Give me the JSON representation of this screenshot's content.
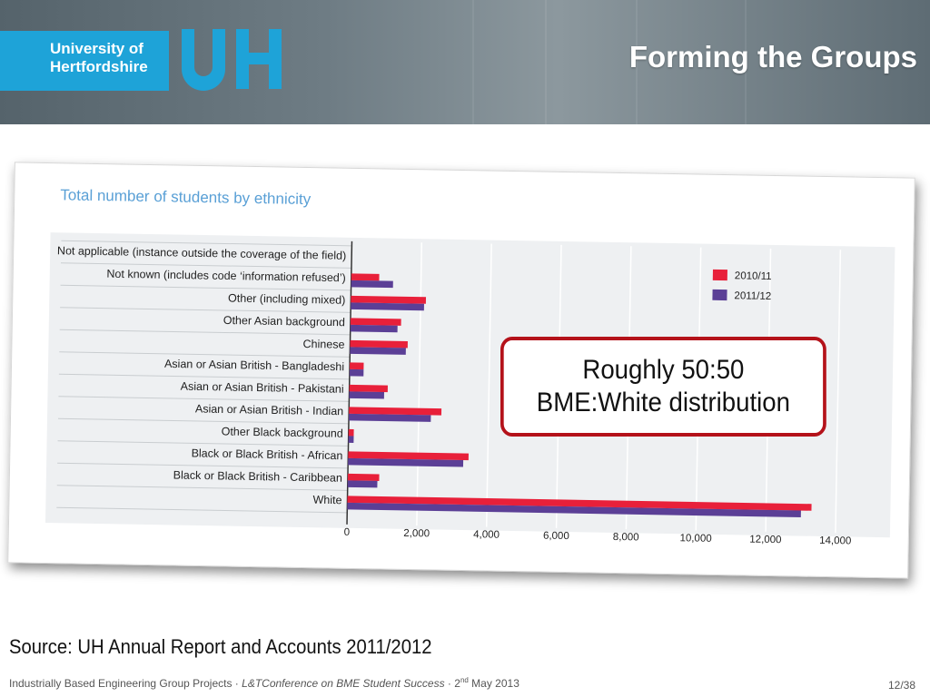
{
  "header": {
    "logo_line1": "University of",
    "logo_line2": "Hertfordshire",
    "logo_mark": "UH",
    "title": "Forming the Groups"
  },
  "callout": {
    "line1": "Roughly 50:50",
    "line2": "BME:White distribution"
  },
  "source": "Source: UH Annual Report and Accounts 2011/2012",
  "footer": {
    "text_plain": "Industrially Based Engineering Group Projects · ",
    "text_italic": "L&TConference on BME Student Success",
    "text_date_pre": " · 2",
    "text_date_sup": "nd",
    "text_date_post": " May 2013",
    "page": "12/38"
  },
  "colors": {
    "series_2010": "#e8203a",
    "series_2011": "#5b3f96",
    "plot_bg": "#eef0f2",
    "title_text": "#5aa0d6",
    "callout_border": "#b4121a",
    "logo_blue": "#1ea3d8"
  },
  "chart_data": {
    "type": "bar",
    "orientation": "horizontal",
    "title": "Total number of students by ethnicity",
    "categories": [
      "Not applicable (instance outside the coverage of the field)",
      "Not known (includes code ‘information refused’)",
      "Other (including mixed)",
      "Other Asian background",
      "Chinese",
      "Asian or Asian British - Bangladeshi",
      "Asian or Asian British - Pakistani",
      "Asian or Asian British - Indian",
      "Other Black background",
      "Black or Black British - African",
      "Black or Black British - Caribbean",
      "White"
    ],
    "series": [
      {
        "name": "2010/11",
        "values": [
          0,
          800,
          2150,
          1450,
          1650,
          400,
          1100,
          2650,
          150,
          3450,
          900,
          13300
        ]
      },
      {
        "name": "2011/12",
        "values": [
          0,
          1200,
          2100,
          1350,
          1600,
          400,
          1000,
          2350,
          150,
          3300,
          850,
          13000
        ]
      }
    ],
    "x_ticks": [
      "0",
      "2,000",
      "4,000",
      "6,000",
      "8,000",
      "10,000",
      "12,000",
      "14,000"
    ],
    "xlim": [
      0,
      14000
    ],
    "grid": true,
    "legend_position": "top-right"
  }
}
